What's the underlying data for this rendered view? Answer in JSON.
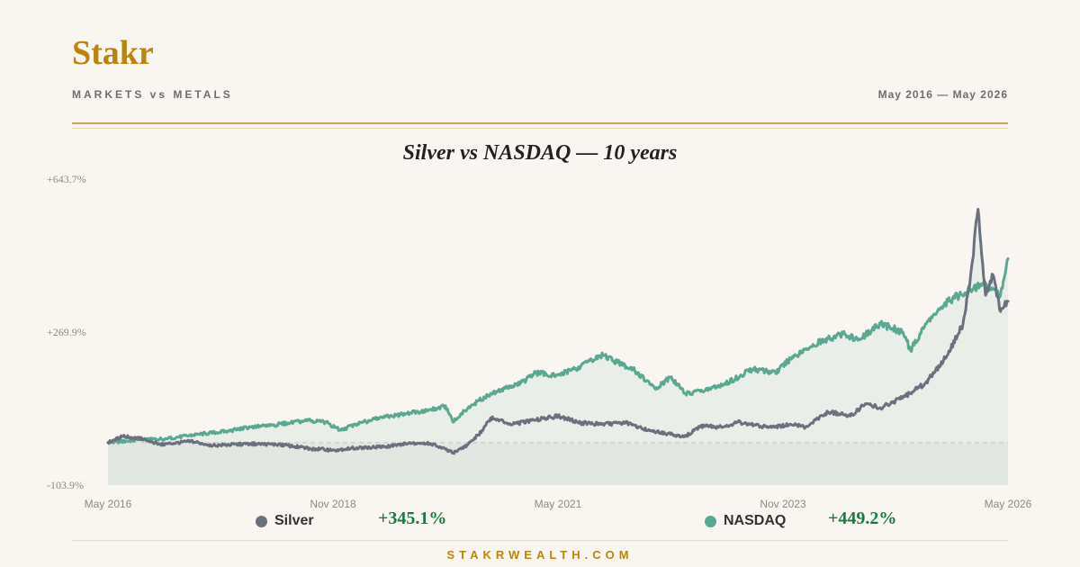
{
  "header": {
    "brand": "Stakr",
    "subtitle": "MARKETS vs METALS",
    "date_range": "May 2016 — May 2026"
  },
  "footer": {
    "url": "STAKRWEALTH.COM"
  },
  "colors": {
    "brand_gold": "#b8860b",
    "silver": "#69717f",
    "nasdaq": "#5aa892",
    "positive": "#1a7a45"
  },
  "legend": [
    {
      "name": "Silver",
      "value": "+345.1%",
      "color": "#69717f"
    },
    {
      "name": "NASDAQ",
      "value": "+449.2%",
      "color": "#5aa892"
    }
  ],
  "chart_data": {
    "type": "line",
    "title": "Silver vs NASDAQ — 10 years",
    "xlabel": "",
    "ylabel": "",
    "y_unit": "percent return",
    "ylim": [
      -103.9,
      643.7
    ],
    "y_tick_labels": [
      "+643.7%",
      "+269.9%",
      "-103.9%"
    ],
    "y_ticks": [
      643.7,
      269.9,
      -103.9
    ],
    "x_tick_labels": [
      "May 2016",
      "Nov 2018",
      "May 2021",
      "Nov 2023",
      "May 2026"
    ],
    "xlim": [
      "2016-05",
      "2026-05"
    ],
    "baseline": 0,
    "grid": false,
    "legend_position": "bottom",
    "series": [
      {
        "name": "NASDAQ",
        "color": "#5aa892",
        "points": [
          [
            "2016-05",
            0
          ],
          [
            "2016-09",
            6
          ],
          [
            "2017-01",
            10
          ],
          [
            "2017-05",
            20
          ],
          [
            "2017-09",
            28
          ],
          [
            "2017-12",
            38
          ],
          [
            "2018-03",
            42
          ],
          [
            "2018-05",
            48
          ],
          [
            "2018-08",
            54
          ],
          [
            "2018-10",
            50
          ],
          [
            "2018-12",
            30
          ],
          [
            "2019-02",
            45
          ],
          [
            "2019-05",
            60
          ],
          [
            "2019-08",
            68
          ],
          [
            "2019-12",
            80
          ],
          [
            "2020-02",
            90
          ],
          [
            "2020-03",
            50
          ],
          [
            "2020-05",
            85
          ],
          [
            "2020-08",
            120
          ],
          [
            "2020-12",
            145
          ],
          [
            "2021-02",
            170
          ],
          [
            "2021-05",
            165
          ],
          [
            "2021-08",
            185
          ],
          [
            "2021-11",
            215
          ],
          [
            "2022-01",
            195
          ],
          [
            "2022-03",
            180
          ],
          [
            "2022-06",
            130
          ],
          [
            "2022-08",
            160
          ],
          [
            "2022-10",
            120
          ],
          [
            "2022-12",
            125
          ],
          [
            "2023-03",
            140
          ],
          [
            "2023-07",
            180
          ],
          [
            "2023-10",
            170
          ],
          [
            "2023-12",
            205
          ],
          [
            "2024-03",
            240
          ],
          [
            "2024-07",
            265
          ],
          [
            "2024-09",
            250
          ],
          [
            "2024-12",
            290
          ],
          [
            "2025-03",
            270
          ],
          [
            "2025-04",
            225
          ],
          [
            "2025-06",
            290
          ],
          [
            "2025-09",
            345
          ],
          [
            "2025-12",
            375
          ],
          [
            "2026-02",
            390
          ],
          [
            "2026-04",
            360
          ],
          [
            "2026-05",
            449.2
          ]
        ]
      },
      {
        "name": "Silver",
        "color": "#69717f",
        "points": [
          [
            "2016-05",
            0
          ],
          [
            "2016-07",
            15
          ],
          [
            "2016-10",
            8
          ],
          [
            "2016-12",
            -5
          ],
          [
            "2017-04",
            3
          ],
          [
            "2017-07",
            -7
          ],
          [
            "2017-12",
            -3
          ],
          [
            "2018-04",
            -5
          ],
          [
            "2018-08",
            -15
          ],
          [
            "2018-11",
            -18
          ],
          [
            "2019-03",
            -12
          ],
          [
            "2019-06",
            -10
          ],
          [
            "2019-09",
            -2
          ],
          [
            "2019-12",
            -2
          ],
          [
            "2020-03",
            -25
          ],
          [
            "2020-05",
            -5
          ],
          [
            "2020-07",
            30
          ],
          [
            "2020-08",
            60
          ],
          [
            "2020-11",
            45
          ],
          [
            "2021-02",
            55
          ],
          [
            "2021-05",
            65
          ],
          [
            "2021-08",
            48
          ],
          [
            "2021-11",
            45
          ],
          [
            "2022-02",
            48
          ],
          [
            "2022-05",
            30
          ],
          [
            "2022-08",
            20
          ],
          [
            "2022-10",
            15
          ],
          [
            "2022-12",
            40
          ],
          [
            "2023-03",
            38
          ],
          [
            "2023-05",
            50
          ],
          [
            "2023-08",
            40
          ],
          [
            "2023-10",
            38
          ],
          [
            "2023-12",
            45
          ],
          [
            "2024-02",
            38
          ],
          [
            "2024-05",
            75
          ],
          [
            "2024-08",
            65
          ],
          [
            "2024-10",
            95
          ],
          [
            "2024-12",
            85
          ],
          [
            "2025-03",
            110
          ],
          [
            "2025-06",
            145
          ],
          [
            "2025-09",
            215
          ],
          [
            "2025-11",
            290
          ],
          [
            "2025-12",
            405
          ],
          [
            "2026-01",
            570
          ],
          [
            "2026-02",
            360
          ],
          [
            "2026-03",
            410
          ],
          [
            "2026-04",
            320
          ],
          [
            "2026-05",
            345.1
          ]
        ]
      }
    ]
  }
}
